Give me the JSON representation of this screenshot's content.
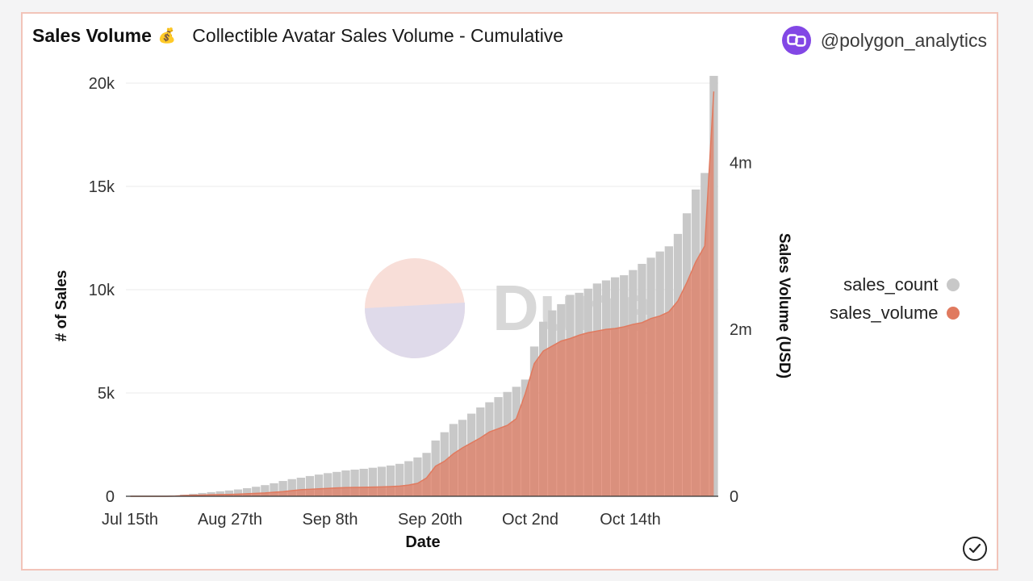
{
  "header": {
    "title": "Sales Volume",
    "title_icon": "money-bag-icon",
    "subtitle": "Collectible Avatar Sales Volume - Cumulative",
    "handle": "@polygon_analytics",
    "handle_icon": "polygon-logo-icon"
  },
  "watermark": {
    "text": "Dune"
  },
  "colors": {
    "sales_count": "#c8c8c8",
    "sales_volume": "#e07a5f",
    "border": "#f2c4b9"
  },
  "chart_data": {
    "type": "bar",
    "xlabel": "Date",
    "ylabel_left": "# of Sales",
    "ylabel_right": "Sales Volume (USD)",
    "x_ticks": [
      "Jul 15th",
      "Aug 27th",
      "Sep 8th",
      "Sep 20th",
      "Oct 2nd",
      "Oct 14th"
    ],
    "y_left_ticks": [
      "0",
      "5k",
      "10k",
      "15k",
      "20k"
    ],
    "y_left_range": [
      0,
      20000
    ],
    "y_right_ticks": [
      "0",
      "2m",
      "4m"
    ],
    "y_right_range": [
      0,
      4950000
    ],
    "grid": true,
    "legend_position": "right",
    "series": [
      {
        "name": "sales_count",
        "type": "bar",
        "axis": "left",
        "values": [
          10,
          10,
          10,
          10,
          10,
          20,
          80,
          120,
          160,
          200,
          240,
          280,
          330,
          390,
          460,
          540,
          630,
          740,
          830,
          900,
          980,
          1050,
          1120,
          1180,
          1250,
          1290,
          1330,
          1380,
          1430,
          1490,
          1570,
          1700,
          1880,
          2100,
          2700,
          3100,
          3500,
          3700,
          4000,
          4300,
          4550,
          4800,
          5050,
          5300,
          5650,
          7250,
          8450,
          9000,
          9300,
          9750,
          9850,
          10050,
          10300,
          10450,
          10600,
          10700,
          10950,
          11250,
          11550,
          11850,
          12100,
          12700,
          13700,
          14850,
          15650,
          20350
        ]
      },
      {
        "name": "sales_volume",
        "type": "area",
        "axis": "right",
        "values": [
          0,
          0,
          0,
          0,
          0,
          2000,
          8000,
          12000,
          15000,
          18000,
          20000,
          22000,
          25000,
          30000,
          35000,
          40000,
          48000,
          56000,
          68000,
          78000,
          84000,
          89000,
          94000,
          100000,
          104000,
          106000,
          108000,
          110000,
          112000,
          116000,
          122000,
          134000,
          155000,
          220000,
          360000,
          420000,
          510000,
          580000,
          640000,
          700000,
          770000,
          810000,
          850000,
          930000,
          1230000,
          1590000,
          1740000,
          1800000,
          1860000,
          1890000,
          1930000,
          1960000,
          1980000,
          2000000,
          2010000,
          2030000,
          2060000,
          2080000,
          2130000,
          2160000,
          2210000,
          2340000,
          2560000,
          2810000,
          3000000,
          4850000
        ]
      }
    ]
  },
  "legend": [
    {
      "label": "sales_count",
      "color": "#c8c8c8"
    },
    {
      "label": "sales_volume",
      "color": "#e07a5f"
    }
  ]
}
